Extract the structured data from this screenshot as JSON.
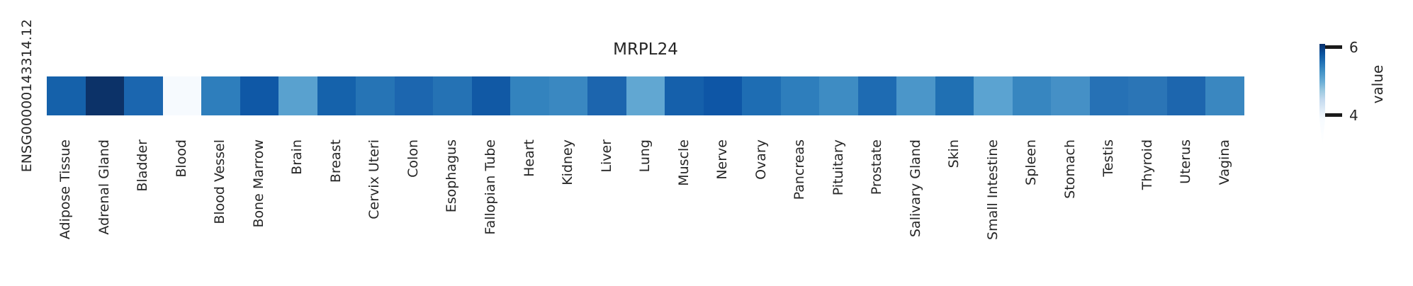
{
  "title": "MRPL24",
  "y_axis": {
    "row_label": "ENSG00000143314.12"
  },
  "colorbar": {
    "label": "value",
    "tick_labels": [
      "6",
      "4"
    ],
    "colormap": "Blues",
    "top_color": "#08306b",
    "bottom_color": "#f7fbff",
    "tick_color": "#1a1a1a"
  },
  "chart_data": {
    "type": "heatmap",
    "title": "MRPL24",
    "rows": [
      "ENSG00000143314.12"
    ],
    "categories": [
      "Adipose Tissue",
      "Adrenal Gland",
      "Bladder",
      "Blood",
      "Blood Vessel",
      "Bone Marrow",
      "Brain",
      "Breast",
      "Cervix Uteri",
      "Colon",
      "Esophagus",
      "Fallopian Tube",
      "Heart",
      "Kidney",
      "Liver",
      "Lung",
      "Muscle",
      "Nerve",
      "Ovary",
      "Pancreas",
      "Pituitary",
      "Prostate",
      "Salivary Gland",
      "Skin",
      "Small Intestine",
      "Spleen",
      "Stomach",
      "Testis",
      "Thyroid",
      "Uterus",
      "Vagina"
    ],
    "series": [
      {
        "name": "ENSG00000143314.12",
        "values": [
          5.6,
          6.1,
          5.6,
          3.9,
          5.4,
          5.7,
          5.1,
          5.6,
          5.5,
          5.6,
          5.5,
          5.7,
          5.4,
          5.3,
          5.6,
          5.1,
          5.6,
          5.7,
          5.6,
          5.4,
          5.3,
          5.6,
          5.2,
          5.5,
          5.1,
          5.4,
          5.3,
          5.5,
          5.5,
          5.6,
          5.4
        ]
      }
    ],
    "values_are_estimated_from_color_scale": true,
    "cell_colors": [
      "#1561aa",
      "#0c3268",
      "#1b66af",
      "#f6fafe",
      "#2e7ebc",
      "#0f58a6",
      "#59a1cf",
      "#1562ab",
      "#2674b5",
      "#1c66af",
      "#2572b4",
      "#1159a5",
      "#3383be",
      "#3a88c1",
      "#1c65ae",
      "#61a7d2",
      "#1560ab",
      "#0e56a6",
      "#1e6db3",
      "#2e7ebc",
      "#3e8cc3",
      "#1e6bb2",
      "#4b96c9",
      "#2070b3",
      "#5ba3d1",
      "#3786c0",
      "#4590c6",
      "#2671b5",
      "#2b75b6",
      "#1d66ae",
      "#3a87c0"
    ],
    "colormap": "Blues",
    "colorbar_label": "value",
    "colorbar_ticks": [
      4,
      6
    ],
    "color_range": [
      3.9,
      6.1
    ],
    "colorbar_extend": "min",
    "legend_position": "right",
    "grid": false,
    "xlabel": "",
    "ylabel": ""
  }
}
